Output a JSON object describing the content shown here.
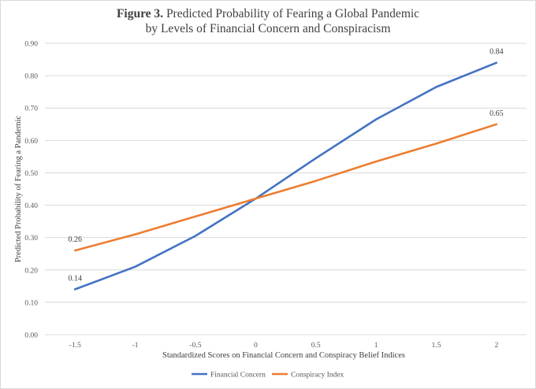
{
  "title": {
    "bold": "Figure 3.",
    "line1": " Predicted Probability of Fearing a Global Pandemic",
    "line2": "by Levels of Financial Concern and Conspiracism"
  },
  "colors": {
    "financial": "#4472C4",
    "conspiracy": "#ED7D31",
    "grid": "#d9d9d9",
    "text": "#595959"
  },
  "chart_data": {
    "type": "line",
    "title": "Figure 3. Predicted Probability of Fearing a Global Pandemic by Levels of Financial Concern and Conspiracism",
    "xlabel": "Standardized Scores on Financial Concern and Conspiracy Belief Indices",
    "ylabel": "Predicted Probability of Fearing a Pandemic",
    "categories": [
      "-1.5",
      "-1",
      "-0.5",
      "0",
      "0.5",
      "1",
      "1.5",
      "2"
    ],
    "ylim": [
      0,
      0.9
    ],
    "yticks": [
      "0.00",
      "0.10",
      "0.20",
      "0.30",
      "0.40",
      "0.50",
      "0.60",
      "0.70",
      "0.80",
      "0.90"
    ],
    "grid": true,
    "legend_position": "bottom",
    "series": [
      {
        "name": "Financial Concern",
        "values": [
          0.14,
          0.21,
          0.305,
          0.42,
          0.545,
          0.665,
          0.765,
          0.84
        ],
        "labels": [
          "0.14",
          "",
          "",
          "",
          "",
          "",
          "",
          "0.84"
        ]
      },
      {
        "name": "Conspiracy Index",
        "values": [
          0.26,
          0.31,
          0.365,
          0.42,
          0.475,
          0.535,
          0.59,
          0.65
        ],
        "labels": [
          "0.26",
          "",
          "",
          "",
          "",
          "",
          "",
          "0.65"
        ]
      }
    ]
  }
}
